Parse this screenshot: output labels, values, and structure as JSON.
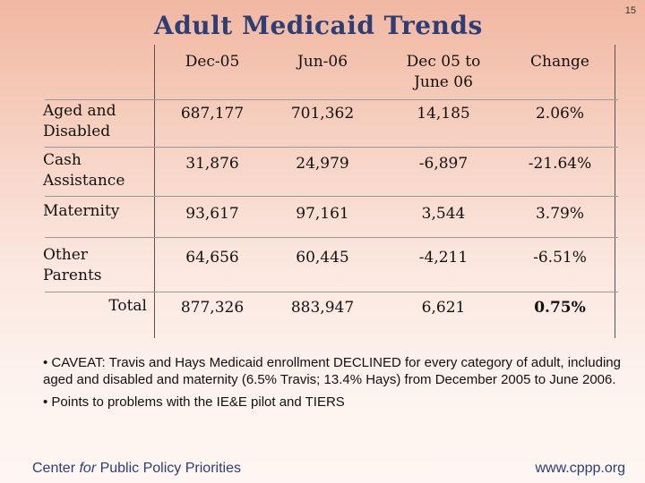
{
  "page_number": "15",
  "title": "Adult Medicaid Trends",
  "table": {
    "headers": [
      "Dec-05",
      "Jun-06",
      "Dec 05 to June 06",
      "Change"
    ],
    "header_dec05_to": "Dec 05 to",
    "header_june06": "June 06",
    "rows": [
      {
        "label_line1": "Aged and",
        "label_line2": "Disabled",
        "dec05": "687,177",
        "jun06": "701,362",
        "diff": "14,185",
        "change": "2.06%"
      },
      {
        "label_line1": "Cash",
        "label_line2": "Assistance",
        "dec05": "31,876",
        "jun06": "24,979",
        "diff": "-6,897",
        "change": "-21.64%"
      },
      {
        "label_line1": "Maternity",
        "label_line2": "",
        "dec05": "93,617",
        "jun06": "97,161",
        "diff": "3,544",
        "change": "3.79%"
      },
      {
        "label_line1": "Other",
        "label_line2": "Parents",
        "dec05": "64,656",
        "jun06": "60,445",
        "diff": "-4,211",
        "change": "-6.51%"
      },
      {
        "label_line1": "Total",
        "label_line2": "",
        "dec05": "877,326",
        "jun06": "883,947",
        "diff": "6,621",
        "change": "0.75%"
      }
    ]
  },
  "notes": [
    "• CAVEAT:  Travis and Hays Medicaid enrollment DECLINED for every category of adult, including aged and disabled and maternity (6.5% Travis; 13.4% Hays) from December 2005 to June 2006.",
    "• Points to problems with the IE&E pilot and TIERS"
  ],
  "footer": {
    "org_prefix": "Center ",
    "org_italic": "for",
    "org_suffix": " Public Policy Priorities",
    "url": "www.cppp.org"
  }
}
